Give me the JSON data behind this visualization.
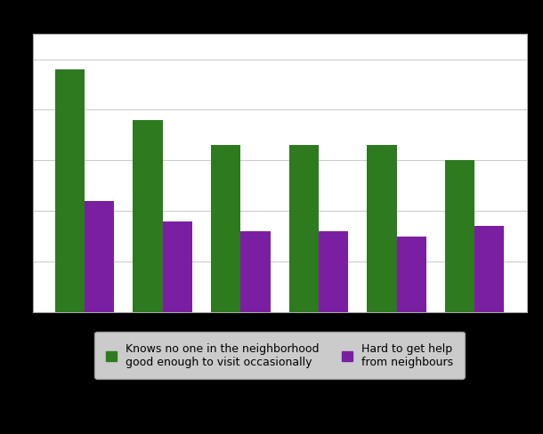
{
  "green_values": [
    48,
    38,
    33,
    33,
    33,
    30
  ],
  "purple_values": [
    22,
    18,
    16,
    16,
    15,
    17
  ],
  "green_color": "#2d7a1f",
  "purple_color": "#7b1fa2",
  "bar_width": 0.38,
  "ylim": [
    0,
    55
  ],
  "grid_color": "#cccccc",
  "plot_bg_color": "#ffffff",
  "legend_labels": [
    "Knows no one in the neighborhood\ngood enough to visit occasionally",
    "Hard to get help\nfrom neighbours"
  ],
  "legend_colors": [
    "#2d7a1f",
    "#7b1fa2"
  ],
  "fig_bg_color": "#000000"
}
